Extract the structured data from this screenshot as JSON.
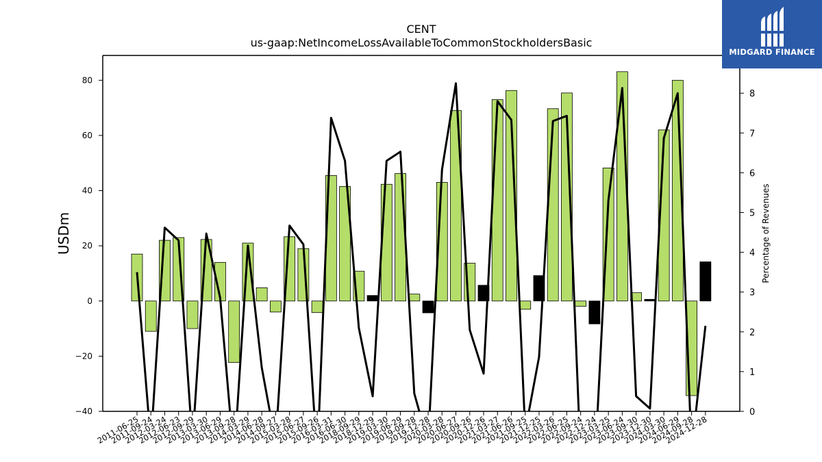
{
  "chart_data": {
    "type": "bar",
    "title": "CENT",
    "subtitle": "us-gaap:NetIncomeLossAvailableToCommonStockholdersBasic",
    "ylabel": "USDm",
    "y2label": "Percentage of Revenues",
    "ylim": [
      -40,
      89
    ],
    "y2lim": [
      0,
      8.95
    ],
    "yticks": [
      -40,
      -20,
      0,
      20,
      40,
      60,
      80
    ],
    "y2ticks": [
      0,
      1,
      2,
      3,
      4,
      5,
      6,
      7,
      8
    ],
    "colors": {
      "bar_light": "#b5dd6a",
      "bar_dark": "#000000",
      "line": "#000000"
    },
    "categories": [
      "2011-06-25",
      "2011-09-24",
      "2012-03-24",
      "2012-06-23",
      "2012-09-29",
      "2013-03-30",
      "2013-06-29",
      "2013-09-28",
      "2014-03-29",
      "2014-06-28",
      "2014-09-27",
      "2015-03-28",
      "2015-06-27",
      "2015-09-26",
      "2016-03-31",
      "2016-06-30",
      "2018-09-29",
      "2018-12-29",
      "2019-03-30",
      "2019-06-29",
      "2019-09-28",
      "2019-12-28",
      "2020-03-28",
      "2020-06-27",
      "2020-09-26",
      "2020-12-26",
      "2021-03-27",
      "2021-06-26",
      "2021-09-25",
      "2021-12-25",
      "2022-03-26",
      "2022-06-25",
      "2022-09-24",
      "2022-12-24",
      "2023-03-25",
      "2023-06-24",
      "2023-09-30",
      "2023-12-30",
      "2024-03-30",
      "2024-06-29",
      "2024-09-28",
      "2024-12-28"
    ],
    "series": [
      {
        "type": "bar",
        "values": [
          17,
          -11,
          22,
          23,
          -10,
          22.3,
          14,
          -22.3,
          21,
          4.8,
          -4,
          23.3,
          19,
          -4.2,
          45.5,
          41.5,
          10.8,
          2,
          42.3,
          46.2,
          2.5,
          -4.3,
          43,
          69,
          13.7,
          5.7,
          73,
          76.3,
          -3,
          9.2,
          69.7,
          75.4,
          -1.9,
          -8.3,
          48.2,
          83.1,
          3,
          0.6,
          62,
          80,
          -34.3,
          14.2
        ],
        "dark": [
          false,
          false,
          false,
          false,
          false,
          false,
          false,
          false,
          false,
          false,
          false,
          false,
          false,
          false,
          false,
          false,
          false,
          true,
          false,
          false,
          false,
          true,
          false,
          false,
          false,
          true,
          false,
          false,
          false,
          true,
          false,
          false,
          false,
          true,
          false,
          false,
          false,
          true,
          false,
          false,
          false,
          true
        ]
      },
      {
        "type": "line",
        "axis": "right",
        "values": [
          3.5,
          -0.8,
          4.62,
          4.3,
          -0.8,
          4.47,
          2.85,
          -1.2,
          4.17,
          1.1,
          -0.8,
          4.67,
          4.2,
          -1.2,
          7.38,
          6.3,
          2.1,
          0.38,
          6.3,
          6.53,
          0.45,
          -0.8,
          6.08,
          8.25,
          2.05,
          0.95,
          7.8,
          7.33,
          -0.5,
          1.37,
          7.3,
          7.43,
          -1.2,
          -1.5,
          5.3,
          8.13,
          0.38,
          0.07,
          6.87,
          8.0,
          -1.0,
          2.15
        ]
      }
    ]
  },
  "logo": {
    "text": "MIDGARD FINANCE"
  }
}
